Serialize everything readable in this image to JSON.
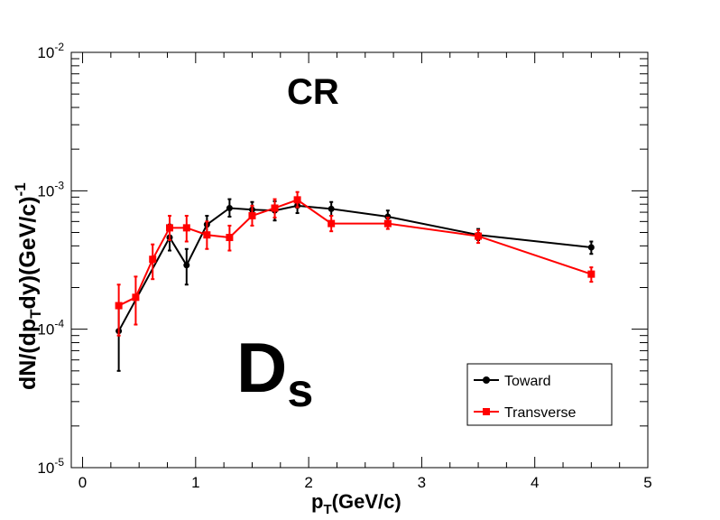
{
  "chart_data": {
    "type": "line",
    "title": "",
    "xlabel": "p_T(GeV/c)",
    "ylabel": "dN/(dp_T dy)(GeV/c)^-1",
    "xlim": [
      -0.1,
      5.0
    ],
    "ylim": [
      1e-05,
      0.01
    ],
    "yscale": "log",
    "grid": false,
    "legend_position": "bottom-right",
    "x_ticks": [
      "0",
      "1",
      "2",
      "3",
      "4",
      "5"
    ],
    "y_ticks": [
      "10^-5",
      "10^-4",
      "10^-3",
      "10^-2"
    ],
    "annotations": {
      "top": "CR",
      "big_main": "D",
      "big_sub": "s"
    },
    "series": [
      {
        "name": "Toward",
        "color": "#000000",
        "marker": "circle",
        "points": [
          {
            "x": 0.32,
            "y": 9.7e-05,
            "lo": 5e-05,
            "hi": 0.00015
          },
          {
            "x": 0.77,
            "y": 0.00046,
            "lo": 0.00037,
            "hi": 0.00057
          },
          {
            "x": 0.92,
            "y": 0.00029,
            "lo": 0.00021,
            "hi": 0.00038
          },
          {
            "x": 1.1,
            "y": 0.00057,
            "lo": 0.00048,
            "hi": 0.00066
          },
          {
            "x": 1.3,
            "y": 0.00075,
            "lo": 0.00065,
            "hi": 0.00087
          },
          {
            "x": 1.5,
            "y": 0.00073,
            "lo": 0.00064,
            "hi": 0.00083
          },
          {
            "x": 1.7,
            "y": 0.00072,
            "lo": 0.00061,
            "hi": 0.00084
          },
          {
            "x": 1.9,
            "y": 0.00078,
            "lo": 0.00069,
            "hi": 0.00088
          },
          {
            "x": 2.2,
            "y": 0.00074,
            "lo": 0.00066,
            "hi": 0.00083
          },
          {
            "x": 2.7,
            "y": 0.00065,
            "lo": 0.00059,
            "hi": 0.00072
          },
          {
            "x": 3.5,
            "y": 0.00048,
            "lo": 0.00044,
            "hi": 0.00053
          },
          {
            "x": 4.5,
            "y": 0.00039,
            "lo": 0.00035,
            "hi": 0.00043
          }
        ]
      },
      {
        "name": "Transverse",
        "color": "#ff0000",
        "marker": "square",
        "points": [
          {
            "x": 0.32,
            "y": 0.000148,
            "lo": 9e-05,
            "hi": 0.00021
          },
          {
            "x": 0.47,
            "y": 0.00017,
            "lo": 0.000108,
            "hi": 0.00024
          },
          {
            "x": 0.62,
            "y": 0.00032,
            "lo": 0.00023,
            "hi": 0.00041
          },
          {
            "x": 0.77,
            "y": 0.00054,
            "lo": 0.00044,
            "hi": 0.00066
          },
          {
            "x": 0.92,
            "y": 0.00054,
            "lo": 0.00043,
            "hi": 0.00066
          },
          {
            "x": 1.1,
            "y": 0.00048,
            "lo": 0.00038,
            "hi": 0.0006
          },
          {
            "x": 1.3,
            "y": 0.00046,
            "lo": 0.00037,
            "hi": 0.00056
          },
          {
            "x": 1.5,
            "y": 0.00066,
            "lo": 0.00056,
            "hi": 0.00078
          },
          {
            "x": 1.7,
            "y": 0.00075,
            "lo": 0.00064,
            "hi": 0.00087
          },
          {
            "x": 1.9,
            "y": 0.00086,
            "lo": 0.00076,
            "hi": 0.00098
          },
          {
            "x": 2.2,
            "y": 0.00058,
            "lo": 0.00051,
            "hi": 0.00066
          },
          {
            "x": 2.7,
            "y": 0.00058,
            "lo": 0.00053,
            "hi": 0.00064
          },
          {
            "x": 3.5,
            "y": 0.00047,
            "lo": 0.00042,
            "hi": 0.00052
          },
          {
            "x": 4.5,
            "y": 0.00025,
            "lo": 0.00022,
            "hi": 0.00028
          }
        ]
      }
    ]
  }
}
